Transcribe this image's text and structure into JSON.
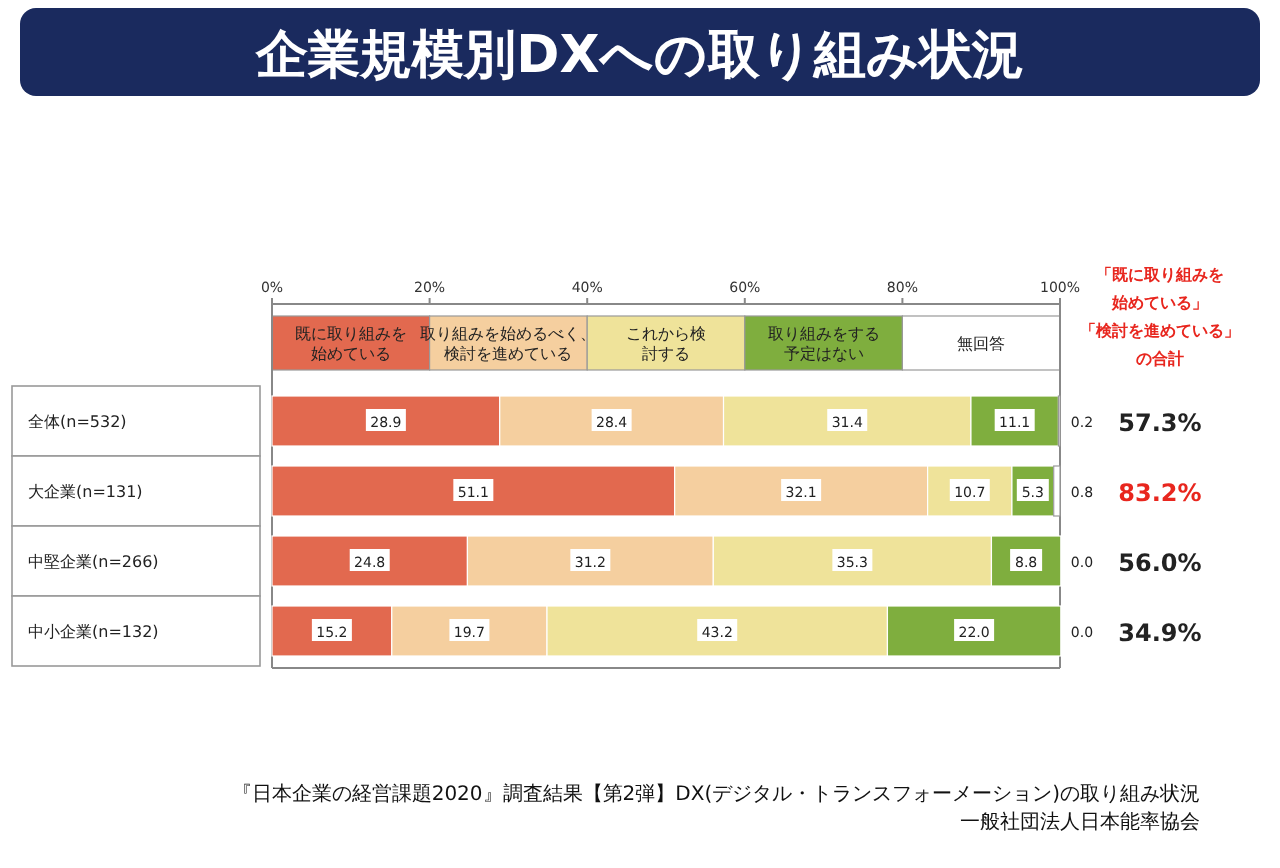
{
  "chart_data": {
    "type": "bar",
    "orientation": "horizontal",
    "stacked": true,
    "title": "企業規模別DXへの取り組み状況",
    "categories": [
      "全体(n=532)",
      "大企業(n=131)",
      "中堅企業(n=266)",
      "中小企業(n=132)"
    ],
    "series": [
      {
        "name": "既に取り組みを始めている",
        "color": "#e2694f",
        "values": [
          28.9,
          51.1,
          24.8,
          15.2
        ],
        "value_labels": [
          "28.9",
          "51.1",
          "24.8",
          "15.2"
        ]
      },
      {
        "name": "取り組みを始めるべく、検討を進めている",
        "color": "#f5cf9f",
        "values": [
          28.4,
          32.1,
          31.2,
          19.7
        ],
        "value_labels": [
          "28.4",
          "32.1",
          "31.2",
          "19.7"
        ]
      },
      {
        "name": "これから検討する",
        "color": "#efe39a",
        "values": [
          31.4,
          10.7,
          35.3,
          43.2
        ],
        "value_labels": [
          "31.4",
          "10.7",
          "35.3",
          "43.2"
        ]
      },
      {
        "name": "取り組みをする予定はない",
        "color": "#7fae3e",
        "values": [
          11.1,
          5.3,
          8.8,
          22.0
        ],
        "value_labels": [
          "11.1",
          "5.3",
          "8.8",
          "22.0"
        ]
      },
      {
        "name": "無回答",
        "color": "#ffffff",
        "values": [
          0.2,
          0.8,
          0.0,
          0.0
        ],
        "value_labels": [
          "0.2",
          "0.8",
          "0.0",
          "0.0"
        ]
      }
    ],
    "xlim": [
      0,
      100
    ],
    "xticks": [
      {
        "value": 0,
        "label": "0%"
      },
      {
        "value": 20,
        "label": "20%"
      },
      {
        "value": 40,
        "label": "40%"
      },
      {
        "value": 60,
        "label": "60%"
      },
      {
        "value": 80,
        "label": "80%"
      },
      {
        "value": 100,
        "label": "100%"
      }
    ],
    "legend": "top",
    "grid": false,
    "annotations": [
      "『日本企業の経営課題2020』調査結果【第2弾】DX(デジタル・トランスフォーメーション)の取り組み状況",
      "一般社団法人日本能率協会",
      "「既に取り組みを始めている」「検討を進めている」の合計",
      "57.3%",
      "83.2%",
      "56.0%",
      "34.9%"
    ]
  }
}
